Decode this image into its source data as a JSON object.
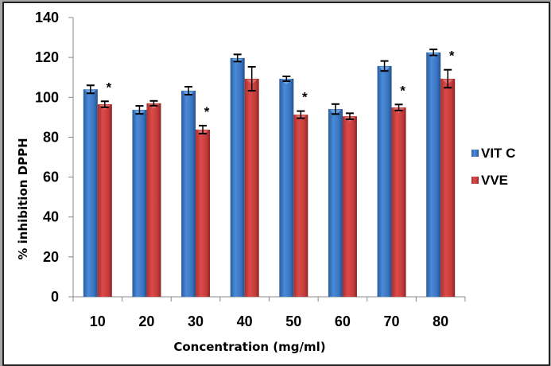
{
  "chart_data": {
    "type": "bar",
    "title": "",
    "xlabel": "Concentration (mg/ml)",
    "ylabel": "% inhibition DPPH",
    "ylim": [
      0,
      140
    ],
    "yticks": [
      0,
      20,
      40,
      60,
      80,
      100,
      120,
      140
    ],
    "grid": false,
    "legend_position": "right",
    "categories": [
      "10",
      "20",
      "30",
      "40",
      "50",
      "60",
      "70",
      "80"
    ],
    "series": [
      {
        "name": "VIT C",
        "color": "#3a78c9",
        "values": [
          104.0,
          93.7,
          103.3,
          119.7,
          109.3,
          94.1,
          115.7,
          122.5
        ],
        "errors": [
          2.0,
          2.0,
          2.0,
          1.8,
          1.2,
          2.5,
          2.5,
          1.5
        ]
      },
      {
        "name": "VVE",
        "color": "#d04040",
        "values": [
          96.5,
          97.0,
          83.8,
          109.3,
          91.3,
          90.5,
          94.9,
          109.3
        ],
        "errors": [
          1.5,
          1.2,
          2.0,
          6.0,
          1.8,
          1.5,
          1.5,
          4.5
        ]
      }
    ],
    "significance": {
      "marker": "*",
      "categories": [
        "10",
        "30",
        "50",
        "70",
        "80"
      ]
    }
  }
}
